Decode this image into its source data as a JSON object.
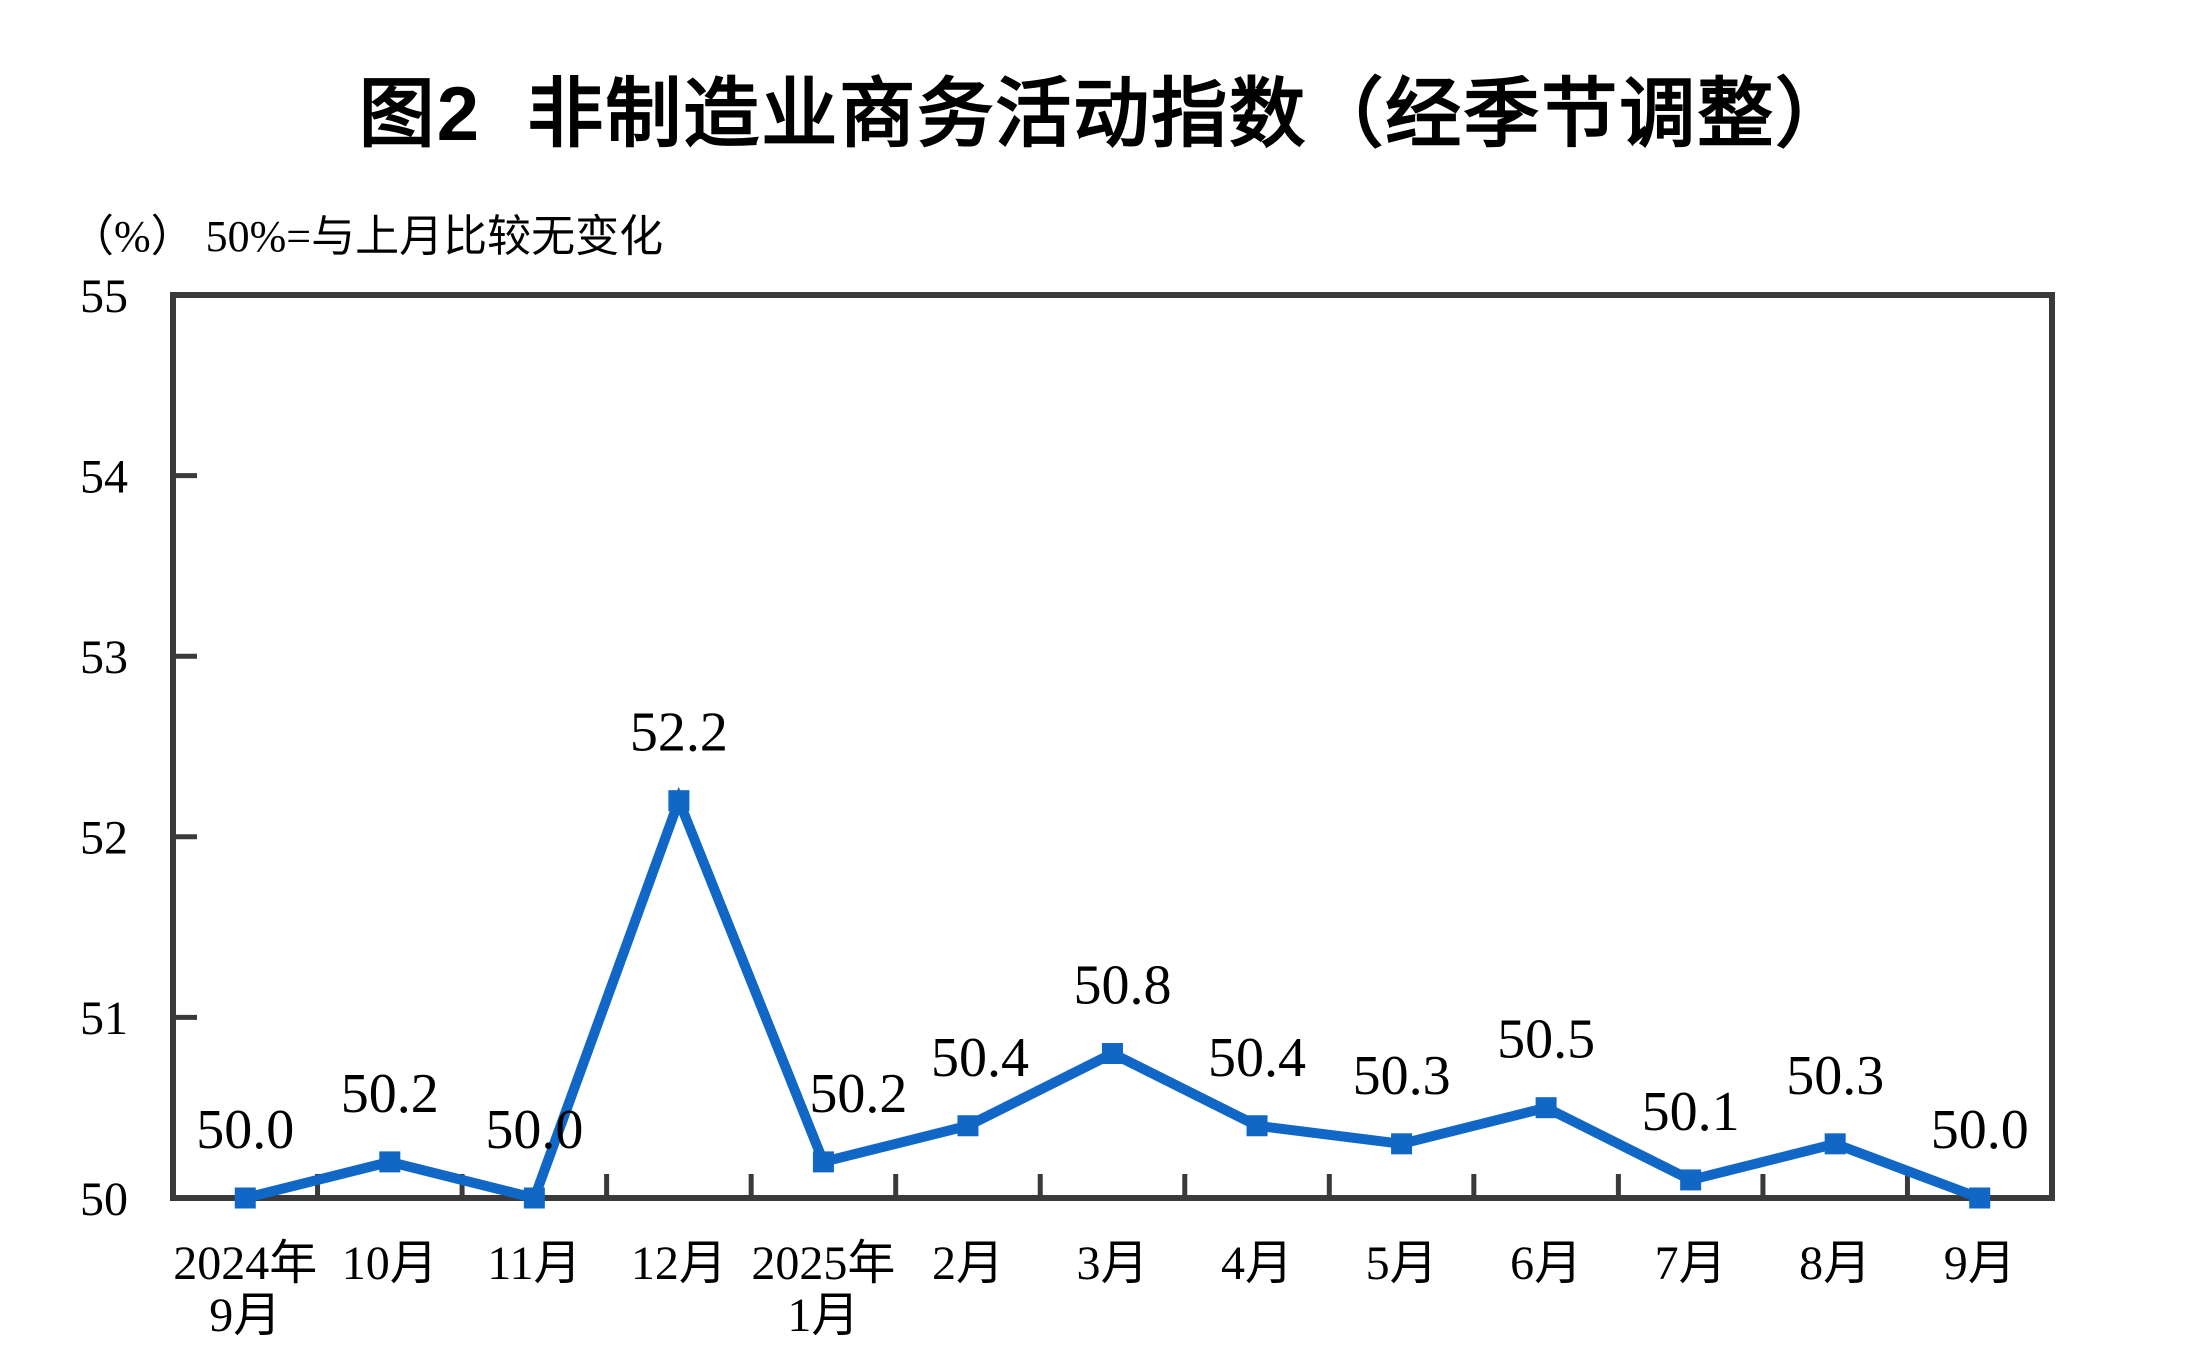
{
  "chart_data": {
    "type": "line",
    "title": "图2  非制造业商务活动指数（经季节调整）",
    "unit_note": "（%） 50%=与上月比较无变化",
    "categories": [
      "2024年9月",
      "10月",
      "11月",
      "12月",
      "2025年1月",
      "2月",
      "3月",
      "4月",
      "5月",
      "6月",
      "7月",
      "8月",
      "9月"
    ],
    "category_label_lines": [
      [
        "2024年",
        "9月"
      ],
      [
        "10月"
      ],
      [
        "11月"
      ],
      [
        "12月"
      ],
      [
        "2025年",
        "1月"
      ],
      [
        "2月"
      ],
      [
        "3月"
      ],
      [
        "4月"
      ],
      [
        "5月"
      ],
      [
        "6月"
      ],
      [
        "7月"
      ],
      [
        "8月"
      ],
      [
        "9月"
      ]
    ],
    "values": [
      50.0,
      50.2,
      50.0,
      52.2,
      50.2,
      50.4,
      50.8,
      50.4,
      50.3,
      50.5,
      50.1,
      50.3,
      50.0
    ],
    "data_labels": [
      "50.0",
      "50.2",
      "50.0",
      "52.2",
      "50.2",
      "50.4",
      "50.8",
      "50.4",
      "50.3",
      "50.5",
      "50.1",
      "50.3",
      "50.0"
    ],
    "ylim": [
      50,
      55
    ],
    "yticks": [
      50,
      51,
      52,
      53,
      54,
      55
    ],
    "ytick_labels": [
      "50",
      "51",
      "52",
      "53",
      "54",
      "55"
    ],
    "xlabel": "",
    "ylabel": "",
    "grid": false,
    "legend_position": "none",
    "marker": "square",
    "line_color": "#1167C6",
    "axis_color": "#3A3A3A",
    "text_color": "#000000"
  }
}
